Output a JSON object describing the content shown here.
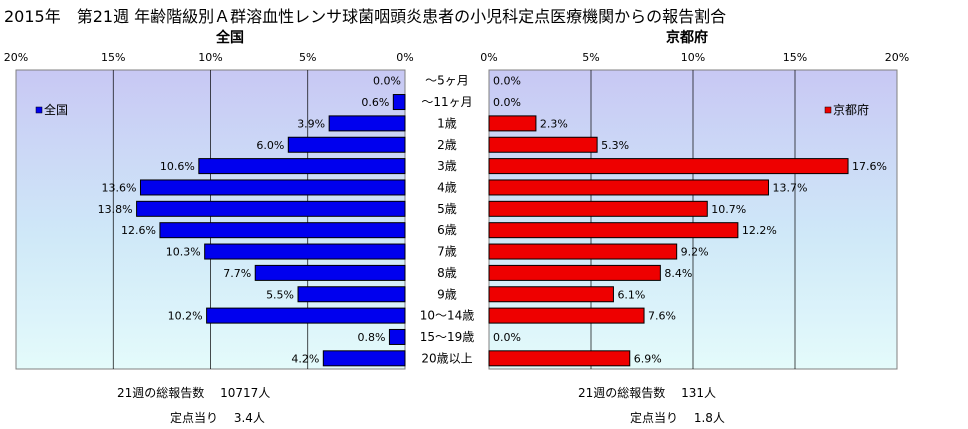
{
  "title": "2015年　第21週 年齢階級別Ａ群溶血性レンサ球菌咽頭炎患者の小児科定点医療機関からの報告割合",
  "chart_data": [
    {
      "type": "bar",
      "title": "全国",
      "legend": "全国",
      "legend_position": "top-left",
      "color": "#0000ee",
      "orientation": "horizontal-reversed",
      "xlim": [
        0,
        20
      ],
      "ticks": [
        "0%",
        "5%",
        "10%",
        "15%",
        "20%"
      ],
      "categories": [
        "～5ヶ月",
        "～11ヶ月",
        "1歳",
        "2歳",
        "3歳",
        "4歳",
        "5歳",
        "6歳",
        "7歳",
        "8歳",
        "9歳",
        "10～14歳",
        "15～19歳",
        "20歳以上"
      ],
      "values": [
        0.0,
        0.6,
        3.9,
        6.0,
        10.6,
        13.6,
        13.8,
        12.6,
        10.3,
        7.7,
        5.5,
        10.2,
        0.8,
        4.2
      ],
      "labels": [
        "0.0%",
        "0.6%",
        "3.9%",
        "6.0%",
        "10.6%",
        "13.6%",
        "13.8%",
        "12.6%",
        "10.3%",
        "7.7%",
        "5.5%",
        "10.2%",
        "0.8%",
        "4.2%"
      ],
      "grid": true
    },
    {
      "type": "bar",
      "title": "京都府",
      "legend": "京都府",
      "legend_position": "top-right",
      "color": "#ee0000",
      "orientation": "horizontal",
      "xlim": [
        0,
        20
      ],
      "ticks": [
        "0%",
        "5%",
        "10%",
        "15%",
        "20%"
      ],
      "categories": [
        "～5ヶ月",
        "～11ヶ月",
        "1歳",
        "2歳",
        "3歳",
        "4歳",
        "5歳",
        "6歳",
        "7歳",
        "8歳",
        "9歳",
        "10～14歳",
        "15～19歳",
        "20歳以上"
      ],
      "values": [
        0.0,
        0.0,
        2.3,
        5.3,
        17.6,
        13.7,
        10.7,
        12.2,
        9.2,
        8.4,
        6.1,
        7.6,
        0.0,
        6.9
      ],
      "labels": [
        "0.0%",
        "0.0%",
        "2.3%",
        "5.3%",
        "17.6%",
        "13.7%",
        "10.7%",
        "12.2%",
        "9.2%",
        "8.4%",
        "6.1%",
        "7.6%",
        "0.0%",
        "6.9%"
      ],
      "grid": true
    }
  ],
  "footer": {
    "left_total": "21週の総報告数　 10717人",
    "left_per": "定点当り　 3.4人",
    "right_total": "21週の総報告数　 131人",
    "right_per": "定点当り　 1.8人"
  }
}
